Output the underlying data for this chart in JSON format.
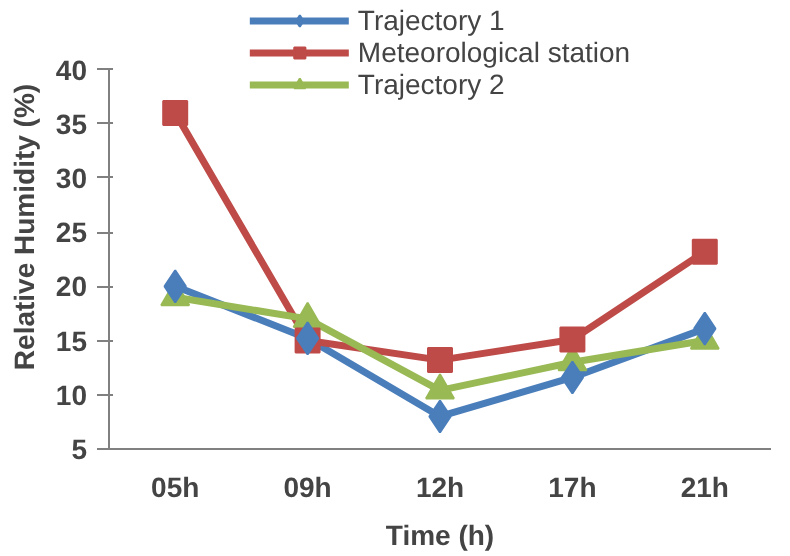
{
  "chart_data": {
    "type": "line",
    "xlabel": "Time (h)",
    "ylabel": "Relative Humidity (%)",
    "categories": [
      "05h",
      "09h",
      "12h",
      "17h",
      "21h"
    ],
    "ylim": [
      5,
      40
    ],
    "yticks": [
      5,
      10,
      15,
      20,
      25,
      30,
      35,
      40
    ],
    "grid": false,
    "legend": "top",
    "series": [
      {
        "name": "Trajectory 1",
        "color": "#4a7ebb",
        "marker": "diamond",
        "values": [
          20,
          15.2,
          8.0,
          11.6,
          16.1
        ]
      },
      {
        "name": "Meteorological station",
        "color": "#be4b48",
        "marker": "square",
        "values": [
          36,
          15,
          13.2,
          15.1,
          23.2
        ]
      },
      {
        "name": "Trajectory 2",
        "color": "#98b954",
        "marker": "triangle",
        "values": [
          19,
          17,
          10.4,
          13,
          15
        ]
      }
    ]
  }
}
